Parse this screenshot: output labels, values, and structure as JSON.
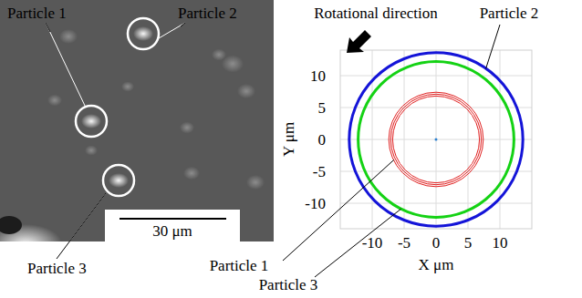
{
  "image": {
    "particles": [
      {
        "label": "Particle 1"
      },
      {
        "label": "Particle 2"
      },
      {
        "label": "Particle 3"
      }
    ],
    "scale_bar": "30 μm"
  },
  "chart_data": {
    "type": "circle",
    "title": "Rotational direction",
    "x_label": "X μm",
    "y_label": "Y μm",
    "xlim": [
      -15,
      15
    ],
    "ylim": [
      -14,
      14
    ],
    "xticks": [
      -10,
      -5,
      0,
      5,
      10
    ],
    "yticks": [
      -10,
      -5,
      0,
      5,
      10
    ],
    "grid": true,
    "center": {
      "x": 0,
      "y": 0,
      "color": "#2a7fd0"
    },
    "series": [
      {
        "name": "Particle 1",
        "color": "#e02020",
        "radius": [
          6.8,
          7.1,
          7.4
        ]
      },
      {
        "name": "Particle 2",
        "color": "#1414d8",
        "radius": [
          13.6
        ]
      },
      {
        "name": "Particle 3",
        "color": "#14d214",
        "radius": [
          12.2
        ]
      }
    ]
  }
}
